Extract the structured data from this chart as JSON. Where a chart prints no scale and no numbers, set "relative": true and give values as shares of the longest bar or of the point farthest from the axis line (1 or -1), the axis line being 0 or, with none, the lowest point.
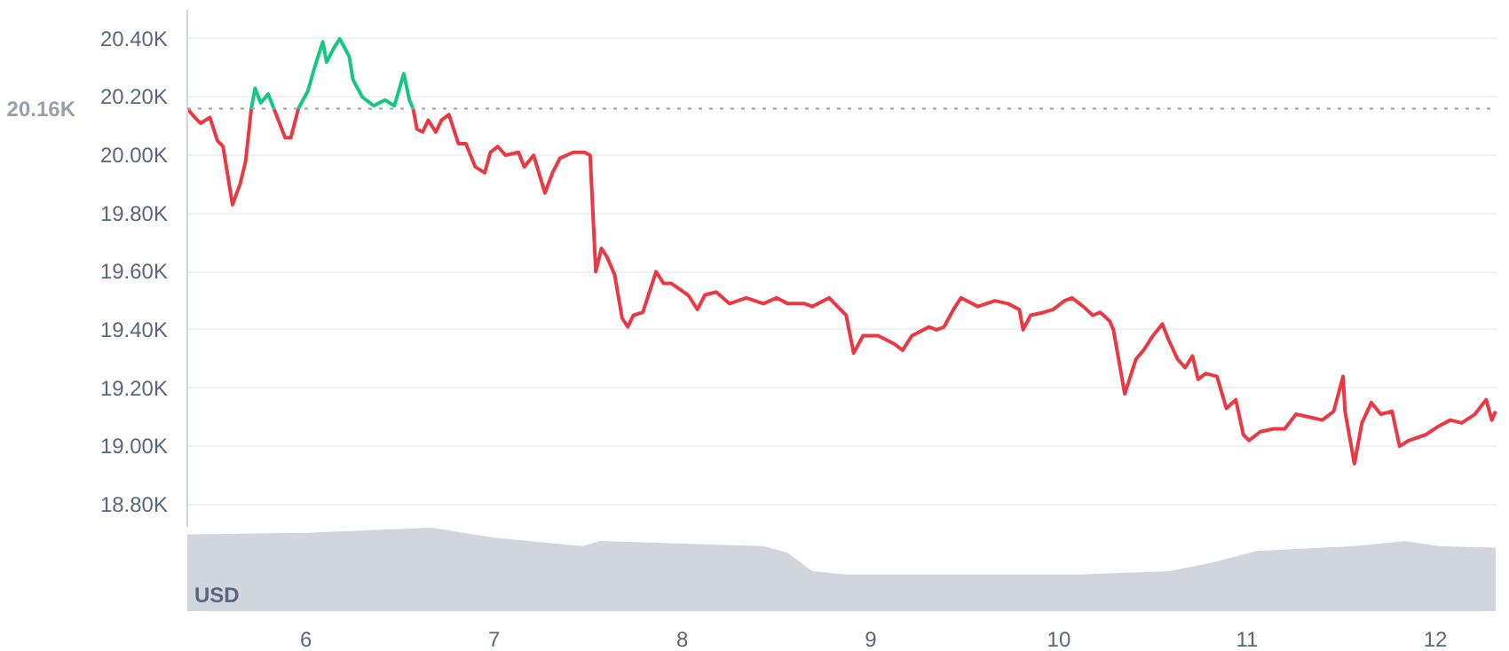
{
  "chart_data": [
    {
      "type": "line",
      "tick_labels": "y",
      "grid": "y",
      "line_style": "solid",
      "marker": "none",
      "xlim": [
        5.37,
        12.33
      ],
      "ylim": [
        18.72,
        20.5
      ],
      "yticks": [
        {
          "value": 18.8,
          "label": "18.80K"
        },
        {
          "value": 19.0,
          "label": "19.00K"
        },
        {
          "value": 19.2,
          "label": "19.20K"
        },
        {
          "value": 19.4,
          "label": "19.40K"
        },
        {
          "value": 19.6,
          "label": "19.60K"
        },
        {
          "value": 19.8,
          "label": "19.80K"
        },
        {
          "value": 20.0,
          "label": "20.00K"
        },
        {
          "value": 20.2,
          "label": "20.20K"
        },
        {
          "value": 20.4,
          "label": "20.40K"
        }
      ],
      "ref_lines": [
        {
          "axis": "y",
          "value": 20.16,
          "label": "20.16K",
          "color": "#9aa0ab",
          "line_style": "dotted"
        }
      ],
      "series": [
        {
          "color": "#ea3943",
          "x": [
            5.37,
            5.41,
            5.44,
            5.49,
            5.53,
            5.56,
            5.59,
            5.61,
            5.65,
            5.68,
            5.71,
            5.77,
            5.83,
            5.89,
            5.92,
            5.96,
            6.26,
            6.57,
            6.59,
            6.62,
            6.65,
            6.69,
            6.72,
            6.76,
            6.81,
            6.85,
            6.9,
            6.95,
            6.98,
            7.02,
            7.06,
            7.13,
            7.16,
            7.21,
            7.27,
            7.31,
            7.35,
            7.42,
            7.48,
            7.51,
            7.54,
            7.57,
            7.6,
            7.64,
            7.68,
            7.71,
            7.74,
            7.79,
            7.86,
            7.9,
            7.94,
            8.03,
            8.08,
            8.12,
            8.18,
            8.25,
            8.34,
            8.43,
            8.5,
            8.56,
            8.65,
            8.69,
            8.78,
            8.87,
            8.91,
            8.96,
            9.04,
            9.13,
            9.17,
            9.22,
            9.31,
            9.35,
            9.39,
            9.44,
            9.48,
            9.57,
            9.66,
            9.73,
            9.79,
            9.81,
            9.85,
            9.92,
            9.97,
            10.03,
            10.07,
            10.13,
            10.18,
            10.22,
            10.27,
            10.29,
            10.35,
            10.41,
            10.45,
            10.5,
            10.55,
            10.58,
            10.63,
            10.67,
            10.71,
            10.74,
            10.78,
            10.84,
            10.89,
            10.94,
            10.98,
            11.01,
            11.07,
            11.14,
            11.2,
            11.26,
            11.33,
            11.4,
            11.46,
            11.51,
            11.52,
            11.57,
            11.61,
            11.66,
            11.71,
            11.77,
            11.81,
            11.86,
            11.95,
            12.02,
            12.08,
            12.14,
            12.21,
            12.27,
            12.3,
            12.32
          ],
          "values": [
            20.16,
            20.13,
            20.11,
            20.13,
            20.05,
            20.03,
            19.91,
            19.83,
            19.9,
            19.98,
            20.16,
            null,
            20.16,
            20.06,
            20.06,
            20.16,
            null,
            20.16,
            20.09,
            20.08,
            20.12,
            20.08,
            20.12,
            20.14,
            20.04,
            20.04,
            19.96,
            19.94,
            20.01,
            20.03,
            20.0,
            20.01,
            19.96,
            20.0,
            19.87,
            19.94,
            19.99,
            20.01,
            20.01,
            20.0,
            19.6,
            19.68,
            19.65,
            19.59,
            19.44,
            19.41,
            19.45,
            19.46,
            19.6,
            19.56,
            19.56,
            19.52,
            19.47,
            19.52,
            19.53,
            19.49,
            19.51,
            19.49,
            19.51,
            19.49,
            19.49,
            19.48,
            19.51,
            19.45,
            19.32,
            19.38,
            19.38,
            19.35,
            19.33,
            19.38,
            19.41,
            19.4,
            19.41,
            19.47,
            19.51,
            19.48,
            19.5,
            19.49,
            19.47,
            19.4,
            19.45,
            19.46,
            19.47,
            19.5,
            19.51,
            19.48,
            19.45,
            19.46,
            19.43,
            19.4,
            19.18,
            19.3,
            19.33,
            19.38,
            19.42,
            19.37,
            19.3,
            19.27,
            19.31,
            19.23,
            19.25,
            19.24,
            19.13,
            19.16,
            19.04,
            19.02,
            19.05,
            19.06,
            19.06,
            19.11,
            19.1,
            19.09,
            19.12,
            19.24,
            19.12,
            18.94,
            19.08,
            19.15,
            19.11,
            19.12,
            19.0,
            19.02,
            19.04,
            19.07,
            19.09,
            19.08,
            19.11,
            19.16,
            19.09,
            19.12
          ]
        },
        {
          "color": "#16c784",
          "x": [
            5.71,
            5.73,
            5.76,
            5.8,
            5.83,
            5.89,
            5.92,
            5.96,
            6.01,
            6.05,
            6.09,
            6.11,
            6.15,
            6.18,
            6.23,
            6.25,
            6.3,
            6.36,
            6.42,
            6.47,
            6.52,
            6.55,
            6.57
          ],
          "values": [
            20.16,
            20.23,
            20.18,
            20.21,
            20.16,
            null,
            null,
            20.16,
            20.22,
            20.31,
            20.39,
            20.32,
            20.37,
            20.4,
            20.34,
            20.26,
            20.2,
            20.17,
            20.19,
            20.17,
            20.28,
            20.19,
            20.16
          ]
        }
      ]
    },
    {
      "type": "area",
      "relative": true,
      "tick_labels": "x",
      "grid": false,
      "xlim": [
        5.37,
        12.33
      ],
      "xticks": [
        6,
        7,
        8,
        9,
        10,
        11,
        12
      ],
      "annotations": [
        "USD"
      ],
      "series": [
        {
          "color": "#d0d5de",
          "x": [
            5.37,
            6.0,
            6.67,
            7.0,
            7.47,
            7.56,
            8.43,
            8.56,
            8.69,
            8.87,
            10.11,
            10.59,
            10.81,
            11.05,
            11.57,
            11.84,
            12.02,
            12.32
          ],
          "values": [
            0.92,
            0.94,
            1.0,
            0.88,
            0.78,
            0.84,
            0.78,
            0.7,
            0.48,
            0.44,
            0.44,
            0.48,
            0.58,
            0.72,
            0.78,
            0.84,
            0.78,
            0.76
          ]
        }
      ]
    }
  ]
}
